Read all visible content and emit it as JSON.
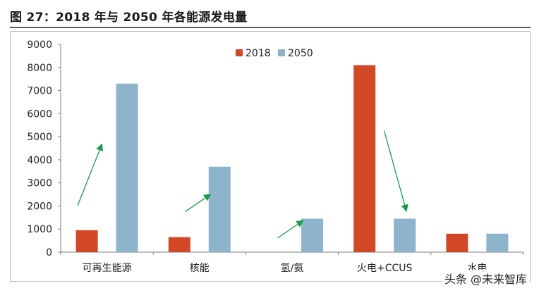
{
  "figure": {
    "title": "图 27：2018 年与 2050 年各能源发电量"
  },
  "watermark": "头条 @未来智库",
  "footer_note": "",
  "colors": {
    "series_2018": "#d24726",
    "series_2050": "#8eb4cb",
    "arrow": "#1a9a4a",
    "axis": "#7f7f7f"
  },
  "chart_data": {
    "type": "bar",
    "categories": [
      "可再生能源",
      "核能",
      "氢/氨",
      "火电+CCUS",
      "水电"
    ],
    "series": [
      {
        "name": "2018",
        "values": [
          950,
          650,
          0,
          8100,
          800
        ]
      },
      {
        "name": "2050",
        "values": [
          7300,
          3700,
          1450,
          1450,
          800
        ]
      }
    ],
    "ylim": [
      0,
      9000
    ],
    "yticks": [
      "0",
      "1000",
      "2000",
      "3000",
      "4000",
      "5000",
      "6000",
      "7000",
      "8000",
      "9000"
    ],
    "grid": false,
    "legend": "top-center",
    "annotations": [
      {
        "type": "arrow",
        "category": "可再生能源",
        "direction": "up"
      },
      {
        "type": "arrow",
        "category": "核能",
        "direction": "up"
      },
      {
        "type": "arrow",
        "category": "氢/氨",
        "direction": "up"
      },
      {
        "type": "arrow",
        "category": "火电+CCUS",
        "direction": "down"
      }
    ]
  }
}
